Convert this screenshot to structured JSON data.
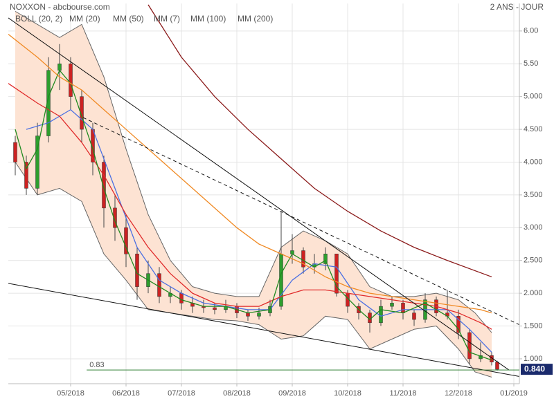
{
  "chart_data": {
    "type": "candlestick",
    "title": "NOXXON - abcbourse.com",
    "period": "2 ANS - JOUR",
    "xlim": [
      2.875,
      12.1
    ],
    "ylim": [
      0.62,
      6.42
    ],
    "xticks": [
      {
        "value": 4,
        "label": "05/2018"
      },
      {
        "value": 5,
        "label": "06/2018"
      },
      {
        "value": 6,
        "label": "07/2018"
      },
      {
        "value": 7,
        "label": "08/2018"
      },
      {
        "value": 8,
        "label": "09/2018"
      },
      {
        "value": 9,
        "label": "10/2018"
      },
      {
        "value": 10,
        "label": "11/2018"
      },
      {
        "value": 11,
        "label": "12/2018"
      },
      {
        "value": 12,
        "label": "01/2019"
      }
    ],
    "yticks": [
      {
        "value": 1,
        "label": "1.000"
      },
      {
        "value": 1.5,
        "label": "1.500"
      },
      {
        "value": 2,
        "label": "2.000"
      },
      {
        "value": 2.5,
        "label": "2.500"
      },
      {
        "value": 3,
        "label": "3.000"
      },
      {
        "value": 3.5,
        "label": "3.500"
      },
      {
        "value": 4,
        "label": "4.000"
      },
      {
        "value": 4.5,
        "label": "4.500"
      },
      {
        "value": 5,
        "label": "5.000"
      },
      {
        "value": 5.5,
        "label": "5.50"
      },
      {
        "value": 6,
        "label": "6.00"
      }
    ],
    "grid": true,
    "last_price": {
      "value": 0.84,
      "label": "0.840"
    },
    "up_color": "#2e9e2e",
    "down_color": "#cc2222",
    "candles": {
      "x": [
        3.0,
        3.2,
        3.4,
        3.6,
        3.8,
        4.0,
        4.2,
        4.4,
        4.6,
        4.8,
        5.0,
        5.2,
        5.4,
        5.6,
        5.8,
        6.0,
        6.2,
        6.4,
        6.6,
        6.8,
        7.0,
        7.2,
        7.4,
        7.6,
        7.8,
        8.0,
        8.2,
        8.4,
        8.6,
        8.8,
        9.0,
        9.2,
        9.4,
        9.6,
        9.8,
        10.0,
        10.2,
        10.4,
        10.6,
        10.8,
        11.0,
        11.2,
        11.4,
        11.6,
        11.7
      ],
      "open": [
        4.3,
        4.0,
        3.6,
        4.4,
        5.4,
        5.5,
        5.0,
        4.5,
        4.0,
        3.3,
        3.0,
        2.6,
        2.1,
        2.3,
        1.95,
        2.0,
        1.85,
        1.8,
        1.78,
        1.75,
        1.8,
        1.7,
        1.65,
        1.7,
        1.8,
        2.6,
        2.65,
        2.4,
        2.45,
        2.6,
        2.0,
        1.8,
        1.7,
        1.55,
        1.8,
        1.85,
        1.7,
        1.6,
        1.9,
        1.7,
        1.65,
        1.4,
        1.0,
        1.05,
        0.95
      ],
      "high": [
        4.4,
        4.1,
        4.6,
        5.6,
        5.8,
        5.6,
        5.1,
        4.6,
        4.1,
        3.5,
        3.2,
        2.7,
        2.5,
        2.4,
        2.1,
        2.05,
        1.95,
        1.9,
        1.85,
        1.9,
        1.85,
        1.75,
        1.78,
        1.9,
        3.25,
        2.9,
        2.7,
        2.6,
        2.7,
        2.6,
        2.05,
        1.85,
        1.75,
        1.9,
        1.95,
        1.9,
        1.75,
        2.0,
        1.95,
        2.05,
        1.75,
        1.45,
        1.25,
        1.1,
        0.97
      ],
      "low": [
        3.8,
        3.5,
        3.5,
        4.3,
        5.1,
        4.8,
        4.3,
        3.8,
        3.0,
        2.8,
        2.4,
        1.9,
        2.0,
        1.85,
        1.85,
        1.75,
        1.7,
        1.7,
        1.68,
        1.7,
        1.62,
        1.58,
        1.6,
        1.65,
        1.75,
        2.45,
        2.3,
        2.3,
        2.35,
        1.95,
        1.7,
        1.6,
        1.4,
        1.5,
        1.75,
        1.6,
        1.5,
        1.55,
        1.65,
        1.6,
        1.3,
        0.92,
        0.95,
        0.9,
        0.82
      ],
      "close": [
        4.0,
        3.6,
        4.4,
        5.4,
        5.5,
        5.0,
        4.5,
        4.0,
        3.3,
        3.0,
        2.6,
        2.1,
        2.3,
        1.95,
        2.0,
        1.85,
        1.8,
        1.78,
        1.75,
        1.8,
        1.7,
        1.65,
        1.7,
        1.8,
        2.6,
        2.65,
        2.4,
        2.45,
        2.6,
        2.0,
        1.8,
        1.7,
        1.55,
        1.8,
        1.85,
        1.7,
        1.6,
        1.9,
        1.7,
        1.65,
        1.4,
        1.0,
        1.05,
        0.95,
        0.84
      ]
    },
    "bollinger": {
      "name": "BOLL (20, 2)",
      "color": "#666666",
      "fill": "#fde3d3",
      "x": [
        3.0,
        3.4,
        3.8,
        4.2,
        4.6,
        5.0,
        5.4,
        5.8,
        6.2,
        6.6,
        7.0,
        7.4,
        7.8,
        8.2,
        8.6,
        9.0,
        9.4,
        9.8,
        10.2,
        10.6,
        11.0,
        11.3,
        11.6
      ],
      "upper": [
        6.3,
        6.1,
        5.9,
        6.1,
        5.3,
        4.2,
        3.2,
        2.5,
        2.1,
        2.0,
        1.95,
        1.95,
        2.7,
        2.95,
        2.8,
        2.6,
        2.1,
        1.95,
        1.95,
        2.0,
        1.9,
        1.7,
        1.4
      ],
      "lower": [
        4.0,
        3.5,
        3.6,
        3.4,
        2.6,
        2.2,
        1.75,
        1.7,
        1.65,
        1.6,
        1.58,
        1.52,
        1.3,
        1.35,
        1.65,
        1.6,
        1.15,
        1.3,
        1.45,
        1.5,
        1.15,
        0.8,
        0.72
      ]
    },
    "series": [
      {
        "name": "MM (20)",
        "color": "#4a6fe3",
        "x": [
          3.2,
          3.6,
          4.0,
          4.4,
          4.8,
          5.2,
          5.6,
          6.0,
          6.4,
          6.8,
          7.2,
          7.6,
          8.0,
          8.4,
          8.8,
          9.2,
          9.6,
          10.0,
          10.4,
          10.8,
          11.2,
          11.6
        ],
        "values": [
          4.5,
          4.6,
          4.8,
          4.5,
          3.6,
          2.7,
          2.2,
          2.0,
          1.85,
          1.8,
          1.75,
          1.75,
          2.2,
          2.45,
          2.4,
          1.9,
          1.65,
          1.75,
          1.75,
          1.75,
          1.45,
          1.1
        ]
      },
      {
        "name": "MM (50)",
        "color": "#e02a2a",
        "x": [
          2.875,
          3.4,
          3.8,
          4.2,
          4.6,
          5.0,
          5.4,
          5.8,
          6.2,
          6.6,
          7.0,
          7.4,
          7.8,
          8.2,
          8.6,
          9.0,
          9.4,
          9.8,
          10.2,
          10.6,
          11.0,
          11.4,
          11.6
        ],
        "values": [
          5.2,
          4.9,
          4.7,
          4.3,
          3.8,
          3.2,
          2.7,
          2.3,
          2.0,
          1.85,
          1.8,
          1.8,
          1.95,
          2.05,
          2.05,
          2.0,
          1.95,
          1.9,
          1.85,
          1.8,
          1.7,
          1.55,
          1.45
        ]
      },
      {
        "name": "MM (7)",
        "color": "#1f8a1f",
        "x": [
          3.0,
          3.2,
          3.4,
          3.6,
          3.8,
          4.0,
          4.2,
          4.4,
          4.6,
          4.8,
          5.0,
          5.2,
          5.6,
          6.0,
          6.4,
          6.8,
          7.2,
          7.6,
          7.8,
          8.0,
          8.4,
          8.6,
          8.8,
          9.2,
          9.4,
          9.6,
          10.0,
          10.4,
          10.8,
          11.0,
          11.2,
          11.6
        ],
        "values": [
          4.5,
          3.9,
          4.2,
          5.0,
          5.4,
          5.2,
          4.7,
          4.2,
          3.6,
          3.1,
          2.7,
          2.3,
          2.1,
          1.9,
          1.8,
          1.8,
          1.7,
          1.75,
          2.3,
          2.6,
          2.4,
          2.5,
          2.1,
          1.75,
          1.6,
          1.75,
          1.7,
          1.85,
          1.65,
          1.45,
          1.1,
          0.98
        ]
      },
      {
        "name": "MM (100)",
        "color": "#f08a24",
        "x": [
          2.875,
          3.4,
          3.8,
          4.2,
          4.6,
          5.0,
          5.4,
          5.8,
          6.2,
          6.6,
          7.0,
          7.4,
          7.8,
          8.2,
          8.6,
          9.0,
          9.4,
          9.8,
          10.2,
          10.6,
          11.0,
          11.4,
          11.6
        ],
        "values": [
          5.95,
          5.6,
          5.3,
          5.1,
          4.8,
          4.5,
          4.2,
          3.9,
          3.6,
          3.3,
          3.0,
          2.75,
          2.6,
          2.45,
          2.25,
          2.1,
          2.0,
          1.95,
          1.9,
          1.85,
          1.8,
          1.75,
          1.7
        ]
      },
      {
        "name": "MM (200)",
        "color": "#8b1a1a",
        "x": [
          5.4,
          6.0,
          6.6,
          7.2,
          7.8,
          8.4,
          9.0,
          9.6,
          10.2,
          10.8,
          11.6
        ],
        "values": [
          6.4,
          5.6,
          5.0,
          4.5,
          4.05,
          3.6,
          3.25,
          2.95,
          2.7,
          2.5,
          2.25
        ]
      }
    ],
    "trendlines": [
      {
        "x": [
          2.875,
          11.91
        ],
        "values": [
          6.2,
          0.83
        ],
        "color": "#111111",
        "dashed": false
      },
      {
        "x": [
          2.875,
          12.1
        ],
        "values": [
          2.15,
          0.73
        ],
        "color": "#111111",
        "dashed": false
      },
      {
        "x": [
          4.225,
          12.1
        ],
        "values": [
          4.68,
          1.52
        ],
        "color": "#111111",
        "dashed": true
      }
    ],
    "level": {
      "label": "0.83",
      "value": 0.83,
      "x": [
        4.29,
        12.1
      ],
      "color": "#2e7d32"
    }
  }
}
